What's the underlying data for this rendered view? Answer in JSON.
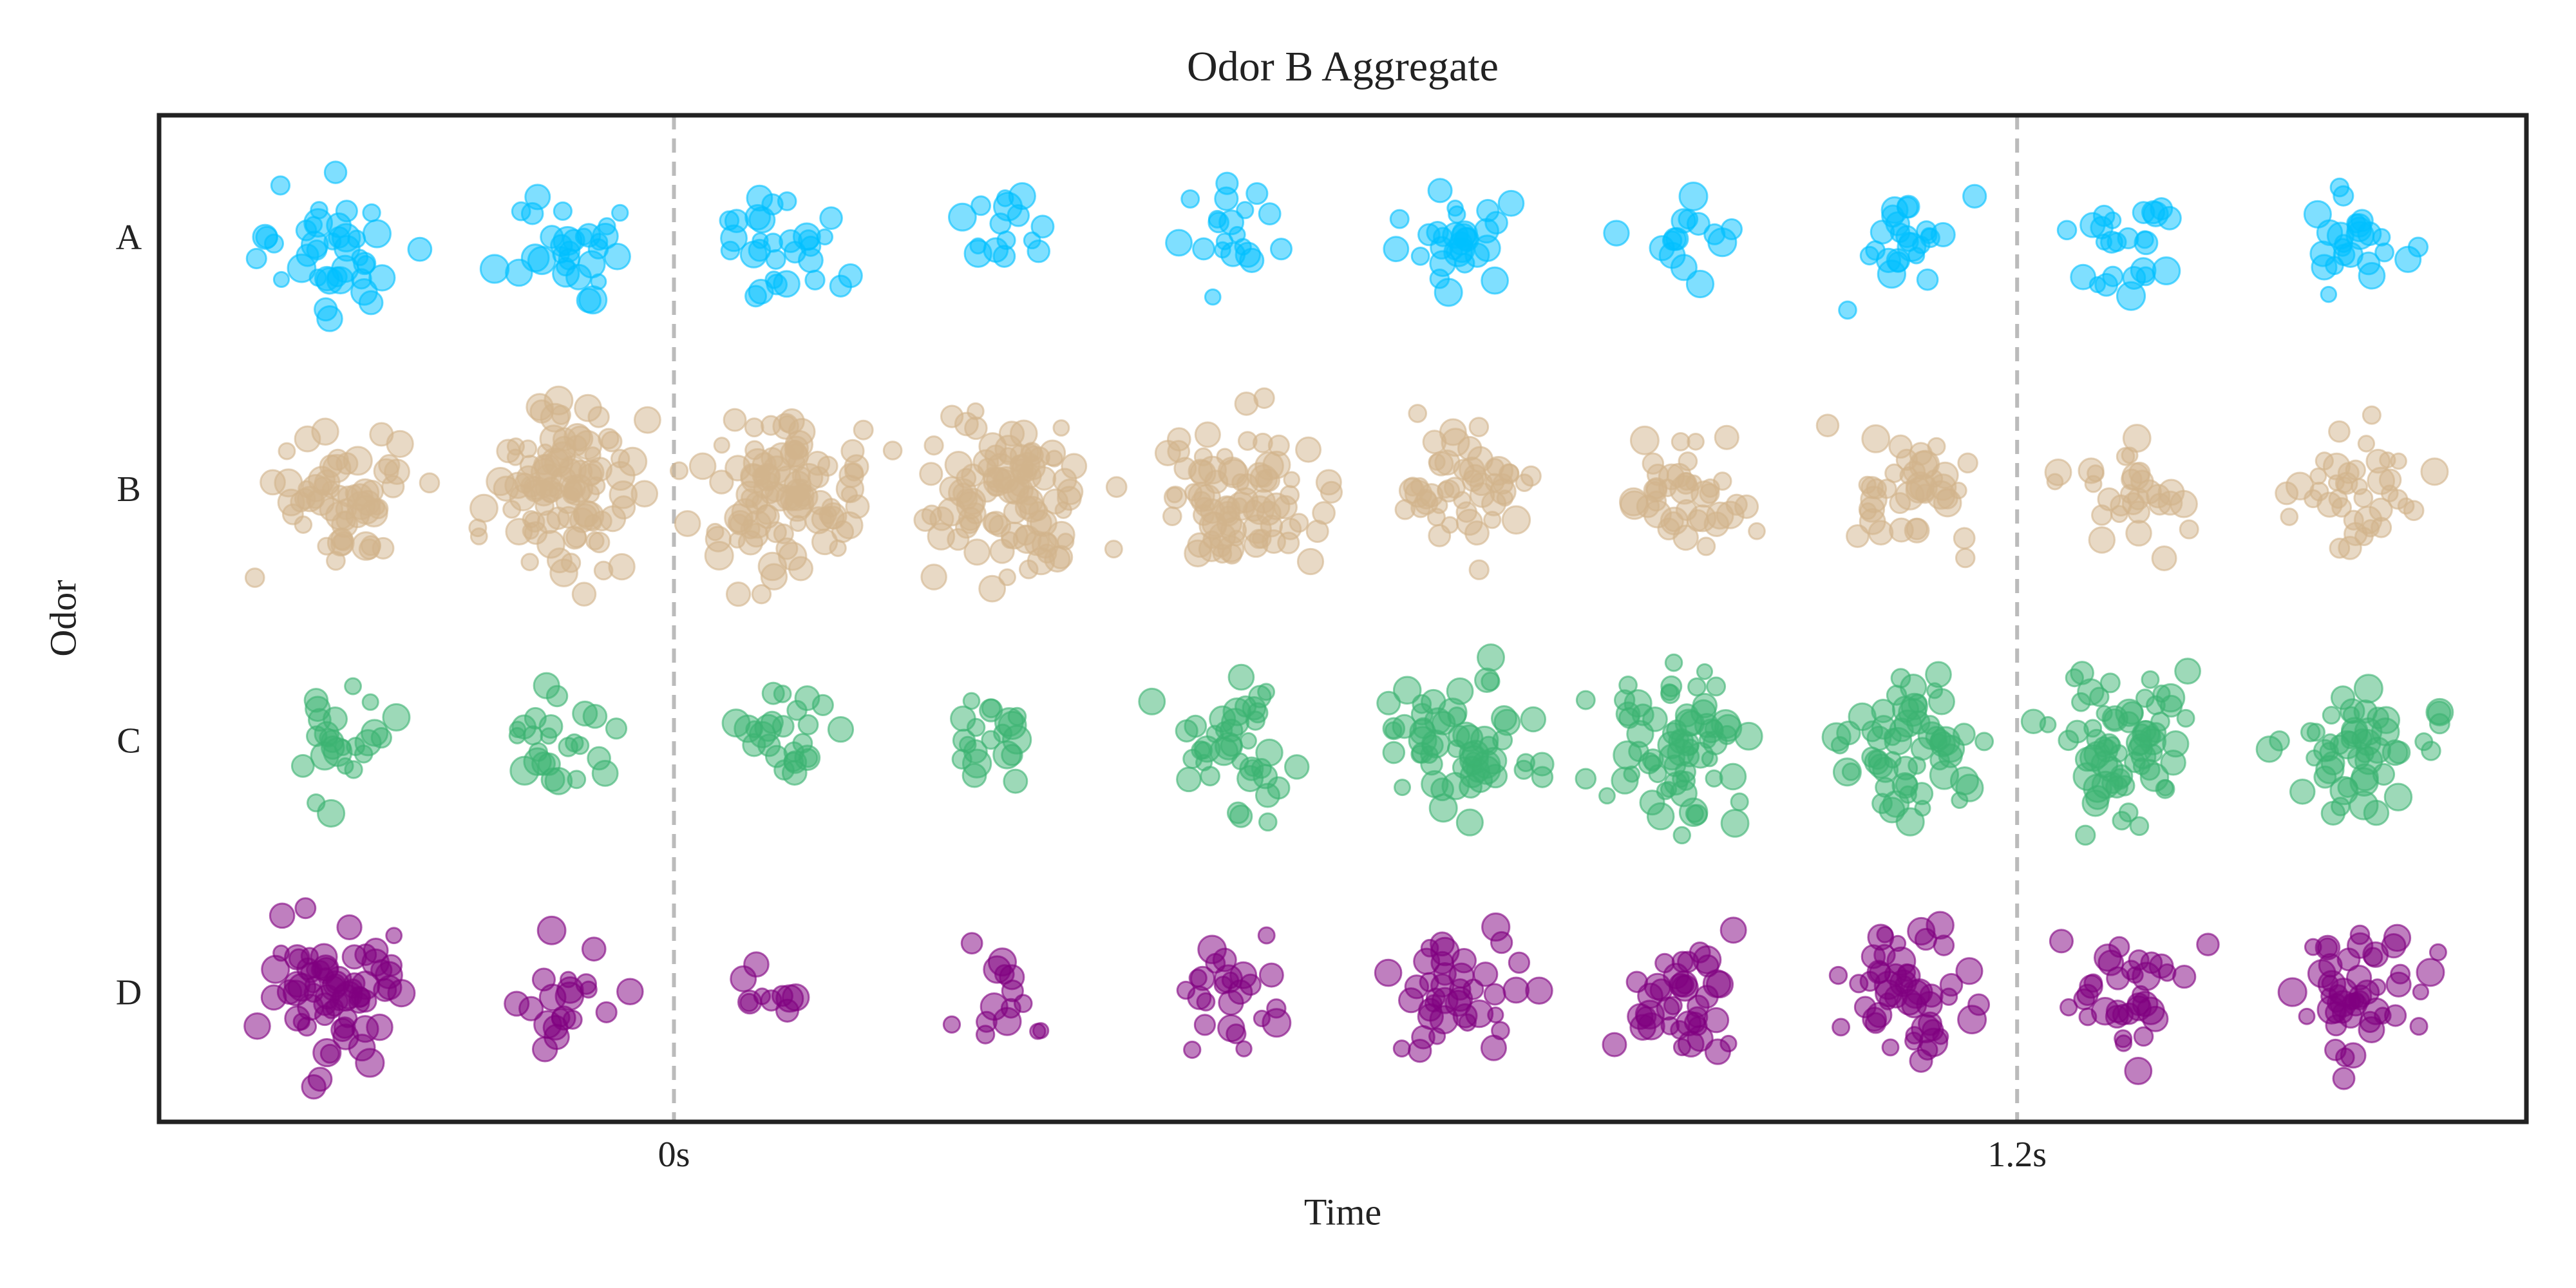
{
  "chart_data": {
    "type": "scatter",
    "title": "Odor B Aggregate",
    "x_label": "Time",
    "y_label": "Odor",
    "x": [
      -0.3,
      -0.1,
      0.1,
      0.3,
      0.5,
      0.7,
      0.9,
      1.1,
      1.3,
      1.5
    ],
    "xlim": [
      -0.46,
      1.655
    ],
    "xticks": [
      {
        "value": 0,
        "label": "0s"
      },
      {
        "value": 1.2,
        "label": "1.2s"
      }
    ],
    "xgrid": true,
    "categories": [
      "A",
      "B",
      "C",
      "D"
    ],
    "series": [
      {
        "name": "A",
        "color": "#00bfff",
        "values": [
          40,
          30,
          30,
          15,
          20,
          30,
          15,
          25,
          25,
          25
        ]
      },
      {
        "name": "B",
        "color": "#d2b48c",
        "values": [
          60,
          100,
          100,
          100,
          80,
          50,
          40,
          40,
          30,
          40
        ]
      },
      {
        "name": "C",
        "color": "#3cb371",
        "values": [
          25,
          25,
          25,
          20,
          40,
          60,
          70,
          60,
          70,
          50
        ]
      },
      {
        "name": "D",
        "color": "#800080",
        "values": [
          70,
          20,
          10,
          15,
          25,
          40,
          40,
          50,
          35,
          50
        ]
      }
    ]
  }
}
